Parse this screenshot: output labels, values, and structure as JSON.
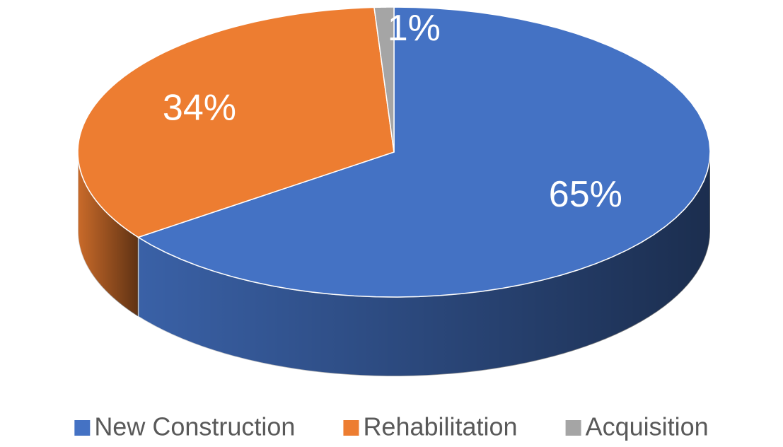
{
  "chart_data": {
    "type": "pie",
    "categories": [
      "New Construction",
      "Rehabilitation",
      "Acquisition"
    ],
    "values": [
      65,
      34,
      1
    ],
    "value_labels": [
      "65%",
      "34%",
      "1%"
    ],
    "colors": [
      "#4472c4",
      "#ed7d31",
      "#a5a5a5"
    ],
    "legend": "bottom"
  }
}
